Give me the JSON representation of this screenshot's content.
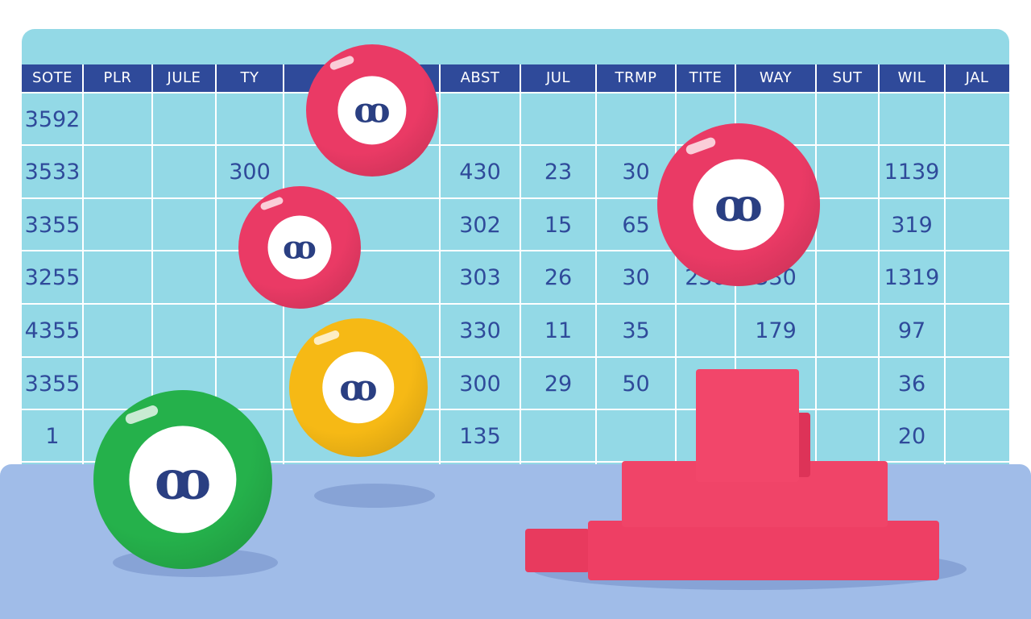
{
  "colors": {
    "board": "#93d9e6",
    "header": "#2f4a9a",
    "text": "#2f4a9a",
    "floor": "#a0bce8",
    "ball_red": "#ea3a65",
    "ball_yellow": "#f6b915",
    "ball_green": "#25b14b",
    "blocks": "#ef3d63"
  },
  "table": {
    "headers": [
      "SOTE",
      "PLR",
      "JULE",
      "TY",
      "",
      "ABST",
      "JUL",
      "TRMP",
      "TITE",
      "WAY",
      "SUT",
      "WIL",
      "JAL"
    ],
    "rows": [
      [
        "3592",
        "",
        "",
        "",
        "",
        "",
        "",
        "",
        "",
        "",
        "",
        "",
        ""
      ],
      [
        "3533",
        "",
        "",
        "300",
        "",
        "430",
        "23",
        "30",
        "",
        "",
        "",
        "1139",
        ""
      ],
      [
        "3355",
        "",
        "",
        "",
        "",
        "302",
        "15",
        "65",
        "",
        "",
        "",
        "319",
        ""
      ],
      [
        "3255",
        "",
        "",
        "",
        "",
        "303",
        "26",
        "30",
        "230",
        "330",
        "",
        "1319",
        ""
      ],
      [
        "4355",
        "",
        "",
        "",
        "",
        "330",
        "11",
        "35",
        "",
        "179",
        "",
        "97",
        ""
      ],
      [
        "3355",
        "",
        "",
        "",
        "",
        "300",
        "29",
        "50",
        "",
        "",
        "",
        "36",
        ""
      ],
      [
        "1",
        "",
        "",
        "",
        "",
        "135",
        "",
        "",
        "",
        "",
        "",
        "20",
        ""
      ]
    ]
  },
  "balls": [
    {
      "name": "red-ball-top",
      "color_key": "ball_red",
      "glyph": "ꝏ"
    },
    {
      "name": "red-ball-middle",
      "color_key": "ball_red",
      "glyph": "ꝏ"
    },
    {
      "name": "yellow-ball",
      "color_key": "ball_yellow",
      "glyph": "ꝏ"
    },
    {
      "name": "green-ball",
      "color_key": "ball_green",
      "glyph": "ꝏ"
    },
    {
      "name": "red-ball-right",
      "color_key": "ball_red",
      "glyph": "ꝏ"
    }
  ]
}
